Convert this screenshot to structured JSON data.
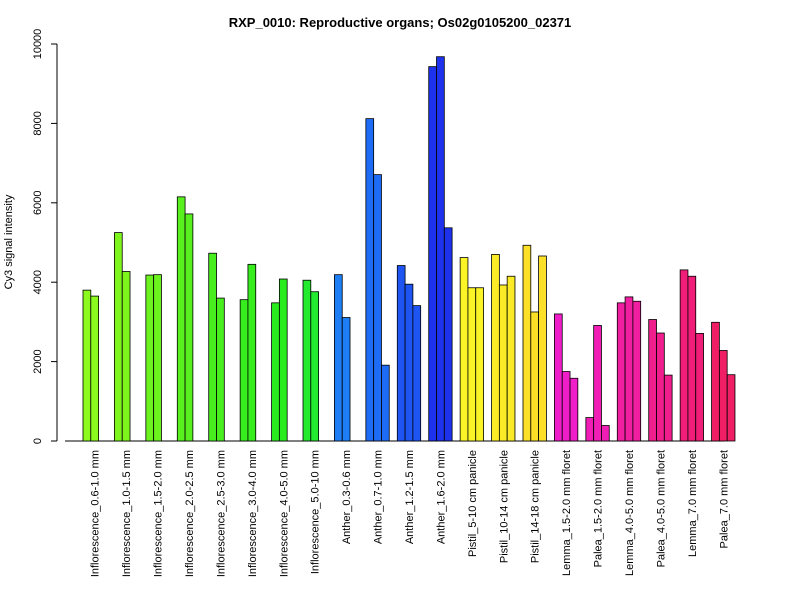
{
  "chart_data": {
    "type": "bar",
    "title": "RXP_0010: Reproductive organs; Os02g0105200_02371",
    "xlabel": "",
    "ylabel": "Cy3 signal intensity",
    "ylim": [
      0,
      10000
    ],
    "yticks": [
      0,
      2000,
      4000,
      6000,
      8000,
      10000
    ],
    "grid": false,
    "legend": "none",
    "groups": [
      {
        "label": "Inflorescence_0.6-1.0 mm",
        "color": "#8cfa1e",
        "values": [
          3800,
          3650
        ]
      },
      {
        "label": "Inflorescence_1.0-1.5 mm",
        "color": "#7ff51e",
        "values": [
          5250,
          4270
        ]
      },
      {
        "label": "Inflorescence_1.5-2.0 mm",
        "color": "#6cf21e",
        "values": [
          4180,
          4190
        ]
      },
      {
        "label": "Inflorescence_2.0-2.5 mm",
        "color": "#58f01e",
        "values": [
          6150,
          5720
        ]
      },
      {
        "label": "Inflorescence_2.5-3.0 mm",
        "color": "#48ee1e",
        "values": [
          4730,
          3600
        ]
      },
      {
        "label": "Inflorescence_3.0-4.0 mm",
        "color": "#38ed1e",
        "values": [
          3560,
          4450
        ]
      },
      {
        "label": "Inflorescence_4.0-5.0 mm",
        "color": "#28ec1e",
        "values": [
          3480,
          4080
        ]
      },
      {
        "label": "Inflorescence_5.0-10 mm",
        "color": "#22ea2e",
        "values": [
          4050,
          3760
        ]
      },
      {
        "label": "Anther_0.3-0.6 mm",
        "color": "#1e7ef5",
        "values": [
          4190,
          3110
        ]
      },
      {
        "label": "Anther_0.7-1.0 mm",
        "color": "#1e6cf5",
        "values": [
          8120,
          6710,
          1910
        ]
      },
      {
        "label": "Anther_1.2-1.5 mm",
        "color": "#1e55f2",
        "values": [
          4420,
          3950,
          3410
        ]
      },
      {
        "label": "Anther_1.6-2.0 mm",
        "color": "#1e32ee",
        "values": [
          9430,
          9680,
          5370
        ]
      },
      {
        "label": "Pistil_5-10 cm panicle",
        "color": "#fbf527",
        "values": [
          4620,
          3860,
          3860
        ]
      },
      {
        "label": "Pistil_10-14 cm panicle",
        "color": "#fbeb27",
        "values": [
          4700,
          3930,
          4150
        ]
      },
      {
        "label": "Pistil_14-18 cm panicle",
        "color": "#fbe027",
        "values": [
          4930,
          3250,
          4660
        ]
      },
      {
        "label": "Lemma_1.5-2.0 mm floret",
        "color": "#f01ec8",
        "values": [
          3200,
          1750,
          1580
        ]
      },
      {
        "label": "Palea_1.5-2.0 mm floret",
        "color": "#f01eb4",
        "values": [
          590,
          2910,
          390
        ]
      },
      {
        "label": "Lemma_4.0-5.0 mm floret",
        "color": "#f01ea0",
        "values": [
          3480,
          3630,
          3520
        ]
      },
      {
        "label": "Palea_4.0-5.0 mm floret",
        "color": "#f01e8c",
        "values": [
          3060,
          2720,
          1660
        ]
      },
      {
        "label": "Lemma_7.0 mm floret",
        "color": "#f01e78",
        "values": [
          4310,
          4150,
          2710
        ]
      },
      {
        "label": "Palea_7.0 mm floret",
        "color": "#f01e64",
        "values": [
          2990,
          2280,
          1670
        ]
      }
    ]
  }
}
